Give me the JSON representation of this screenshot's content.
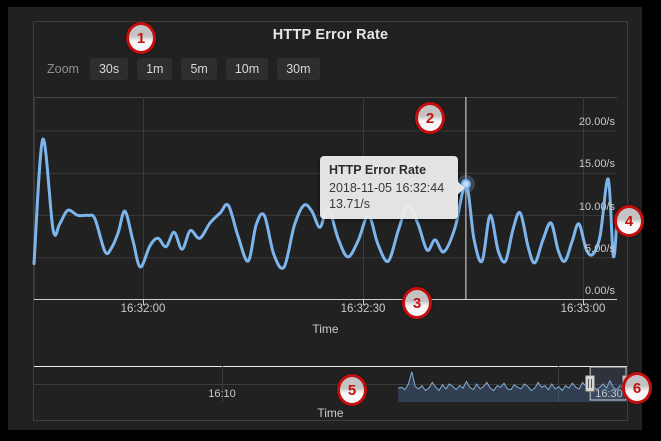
{
  "header": {
    "title": "HTTP Error Rate"
  },
  "zoom_bar": {
    "label": "Zoom",
    "buttons": [
      "30s",
      "1m",
      "5m",
      "10m",
      "30m"
    ]
  },
  "tooltip": {
    "title": "HTTP Error Rate",
    "timestamp": "2018-11-05 16:32:44",
    "value": "13.71/s"
  },
  "annotations": {
    "badges": [
      "1",
      "2",
      "3",
      "4",
      "5",
      "6"
    ]
  },
  "chart_data": [
    {
      "type": "line",
      "name": "HTTP Error Rate",
      "xlabel": "Time",
      "ylabel": "",
      "x_ticks": [
        "16:32:00",
        "16:32:30",
        "16:33:00"
      ],
      "y_ticks": [
        "20.00/s",
        "15.00/s",
        "10.00/s",
        "5.00/s",
        "0.00/s"
      ],
      "ylim": [
        0,
        24
      ],
      "window_start": "16:31:45",
      "window_seconds": 79.5,
      "line_color": "#7cb5ec",
      "grid": true,
      "legend": "none",
      "highlight": {
        "t": 58.9,
        "value": 13.71,
        "time": "16:32:44"
      },
      "points": [
        [
          0,
          4.3
        ],
        [
          1.2,
          19.0
        ],
        [
          2.6,
          8.3
        ],
        [
          3.5,
          9.0
        ],
        [
          4.6,
          10.6
        ],
        [
          6,
          10.0
        ],
        [
          7.4,
          10.0
        ],
        [
          8.3,
          9.6
        ],
        [
          9.7,
          5.7
        ],
        [
          10.6,
          6.2
        ],
        [
          11.5,
          8.0
        ],
        [
          12.4,
          10.5
        ],
        [
          13.5,
          7.0
        ],
        [
          14.5,
          3.9
        ],
        [
          15.8,
          6.4
        ],
        [
          16.9,
          7.3
        ],
        [
          18,
          6.3
        ],
        [
          19.1,
          8.0
        ],
        [
          20.2,
          6.0
        ],
        [
          21.3,
          8.2
        ],
        [
          22.6,
          7.3
        ],
        [
          24,
          9.1
        ],
        [
          25.4,
          10.3
        ],
        [
          26.5,
          11.2
        ],
        [
          27.8,
          7.6
        ],
        [
          29.2,
          4.6
        ],
        [
          30.3,
          8.9
        ],
        [
          31.4,
          10.0
        ],
        [
          32.7,
          5.4
        ],
        [
          34.1,
          3.9
        ],
        [
          35.5,
          8.8
        ],
        [
          36.8,
          11.2
        ],
        [
          37.9,
          10.5
        ],
        [
          39,
          8.6
        ],
        [
          40.1,
          10.9
        ],
        [
          41.5,
          7.2
        ],
        [
          42.8,
          5.1
        ],
        [
          44.2,
          7.0
        ],
        [
          45.6,
          10.0
        ],
        [
          46.9,
          6.6
        ],
        [
          48.3,
          4.6
        ],
        [
          49.7,
          8.3
        ],
        [
          51,
          11.2
        ],
        [
          52.4,
          8.9
        ],
        [
          53.6,
          5.9
        ],
        [
          54.7,
          7.1
        ],
        [
          55.9,
          5.7
        ],
        [
          57.4,
          8.5
        ],
        [
          58.9,
          13.71
        ],
        [
          60,
          7.2
        ],
        [
          61.1,
          4.6
        ],
        [
          62.2,
          10.0
        ],
        [
          63.3,
          5.8
        ],
        [
          64.3,
          4.6
        ],
        [
          65.3,
          8.3
        ],
        [
          66.3,
          10.3
        ],
        [
          67.4,
          6.2
        ],
        [
          68.3,
          4.4
        ],
        [
          69.4,
          7.1
        ],
        [
          70.5,
          9.1
        ],
        [
          71.5,
          5.8
        ],
        [
          72.4,
          4.6
        ],
        [
          73.4,
          7.0
        ],
        [
          74.3,
          9.0
        ],
        [
          75.3,
          6.0
        ],
        [
          76.2,
          5.4
        ],
        [
          77.2,
          7.6
        ],
        [
          78.3,
          14.3
        ],
        [
          79,
          5.2
        ],
        [
          79.5,
          9.5
        ]
      ]
    },
    {
      "type": "area",
      "role": "navigator",
      "xlabel": "Time",
      "x_ticks": [
        "16:10",
        "16:30"
      ],
      "ylim": [
        0,
        22
      ],
      "x_start_frac": 0.614,
      "selection_frac": [
        0.938,
        1.0
      ],
      "line_color": "#86add4",
      "fill_color": "rgba(80,110,160,0.38)",
      "values": [
        8.5,
        9,
        7.5,
        11,
        18.5,
        9.5,
        8,
        10,
        7,
        8.5,
        12,
        9,
        7,
        10.5,
        8,
        11,
        9.5,
        7.5,
        10,
        8.5,
        12.5,
        9,
        7.5,
        11,
        8,
        9.5,
        12,
        8.5,
        7,
        10,
        9,
        11.5,
        8,
        7.5,
        10.5,
        9,
        8,
        11,
        9.5,
        7,
        8.5,
        12,
        9,
        10,
        7.5,
        11,
        8,
        9.5,
        7,
        10,
        8.5,
        11.5,
        9,
        8,
        12,
        9.5,
        8,
        10.5,
        7.5,
        9,
        11,
        8.5,
        13,
        9,
        7.5,
        10,
        8.3,
        9.8
      ]
    }
  ]
}
